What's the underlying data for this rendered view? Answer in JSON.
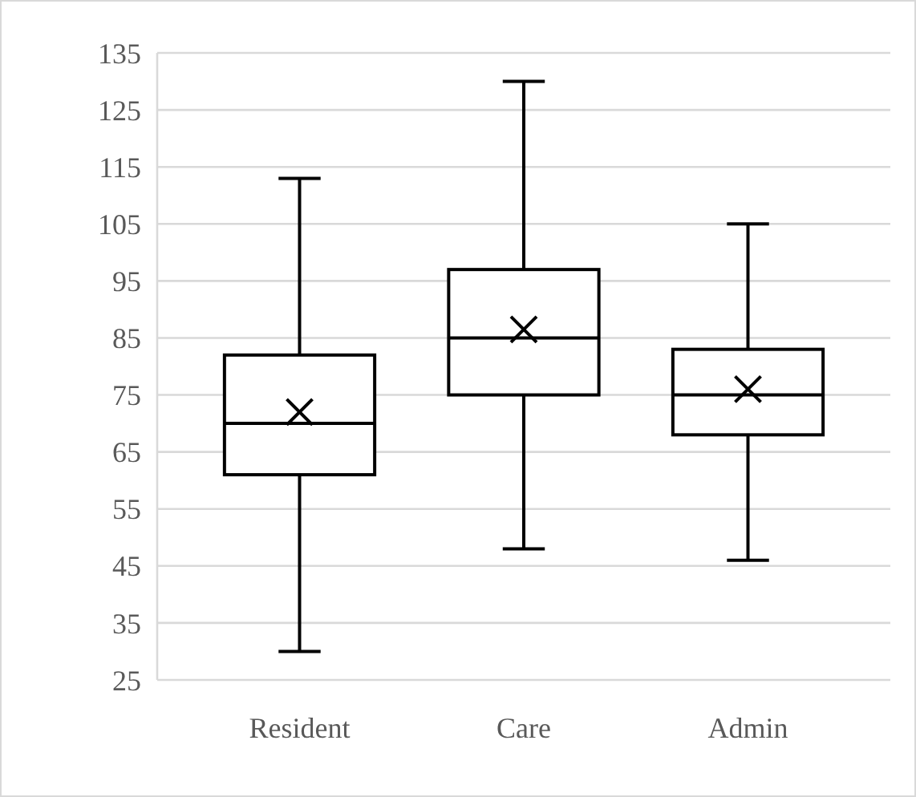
{
  "chart_data": {
    "type": "box",
    "categories": [
      "Resident",
      "Care",
      "Admin"
    ],
    "boxes": [
      {
        "low": 30,
        "q1": 61,
        "median": 70,
        "q3": 82,
        "high": 113,
        "mean": 72
      },
      {
        "low": 48,
        "q1": 75,
        "median": 85,
        "q3": 97,
        "high": 130,
        "mean": 86.5
      },
      {
        "low": 46,
        "q1": 68,
        "median": 75,
        "q3": 83,
        "high": 105,
        "mean": 76
      }
    ],
    "ylim": [
      25,
      135
    ],
    "yticks": [
      25,
      35,
      45,
      55,
      65,
      75,
      85,
      95,
      105,
      115,
      125,
      135
    ],
    "grid": "y",
    "color": "#000000"
  }
}
